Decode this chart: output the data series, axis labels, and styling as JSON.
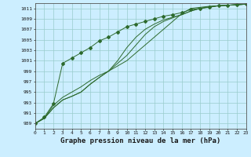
{
  "title": "Graphe pression niveau de la mer (hPa)",
  "bg_color": "#cceeff",
  "grid_color": "#99cccc",
  "line_color": "#2d6a2d",
  "xlim": [
    0,
    23
  ],
  "ylim": [
    988,
    1012
  ],
  "xticks": [
    0,
    1,
    2,
    3,
    4,
    5,
    6,
    7,
    8,
    9,
    10,
    11,
    12,
    13,
    14,
    15,
    16,
    17,
    18,
    19,
    20,
    21,
    22,
    23
  ],
  "yticks": [
    989,
    991,
    993,
    995,
    997,
    999,
    1001,
    1003,
    1005,
    1007,
    1009,
    1011
  ],
  "series": [
    [
      989.0,
      990.0,
      992.0,
      993.5,
      994.2,
      995.0,
      996.5,
      997.8,
      999.0,
      1000.0,
      1001.0,
      1002.5,
      1004.0,
      1005.5,
      1007.0,
      1008.5,
      1010.0,
      1011.0,
      1011.2,
      1011.4,
      1011.5,
      1011.6,
      1011.7,
      1011.8
    ],
    [
      989.0,
      990.0,
      992.0,
      993.5,
      994.2,
      995.0,
      996.5,
      997.8,
      999.0,
      1000.5,
      1002.0,
      1004.0,
      1006.0,
      1007.5,
      1008.5,
      1009.2,
      1009.8,
      1010.5,
      1011.0,
      1011.3,
      1011.5,
      1011.6,
      1011.7,
      1011.8
    ],
    [
      989.0,
      990.0,
      992.5,
      994.0,
      995.0,
      996.0,
      997.2,
      998.2,
      999.0,
      1001.0,
      1003.5,
      1005.5,
      1007.0,
      1008.0,
      1008.8,
      1009.3,
      1009.8,
      1010.5,
      1011.0,
      1011.3,
      1011.5,
      1011.6,
      1011.7,
      1011.8
    ],
    [
      989.0,
      990.2,
      992.8,
      1000.5,
      1001.5,
      1002.5,
      1003.5,
      1004.8,
      1005.5,
      1006.5,
      1007.5,
      1008.0,
      1008.5,
      1009.0,
      1009.5,
      1009.8,
      1010.2,
      1010.8,
      1011.0,
      1011.2,
      1011.5,
      1011.6,
      1011.7,
      1011.8
    ]
  ],
  "marker_series": 3,
  "marker": "D",
  "marker_size": 2.0,
  "title_fontsize": 6.5,
  "tick_fontsize": 4.5,
  "linewidth": 0.7
}
